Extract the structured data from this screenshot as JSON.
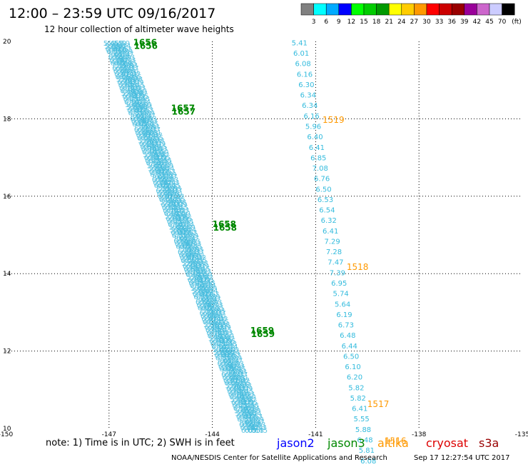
{
  "header": {
    "title": "12:00 – 23:59 UTC 09/16/2017",
    "subtitle": "12 hour collection of altimeter wave heights"
  },
  "colorbar": {
    "colors": [
      "#808080",
      "#00ffff",
      "#00aaff",
      "#0000ff",
      "#00ff00",
      "#00cc00",
      "#009900",
      "#ffff00",
      "#ffcc00",
      "#ff9900",
      "#ff0000",
      "#cc0000",
      "#990000",
      "#990099",
      "#cc66cc",
      "#ccccff",
      "#000000"
    ],
    "labels": [
      "3",
      "6",
      "9",
      "12",
      "15",
      "18",
      "21",
      "24",
      "27",
      "30",
      "33",
      "36",
      "39",
      "42",
      "45",
      "70"
    ],
    "unit": "(ft)"
  },
  "footer": {
    "note": "note: 1) Time is in UTC; 2) SWH is in feet",
    "credit": "NOAA/NESDIS Center for Satellite Applications and Research",
    "timestamp": "Sep 17 12:27:54 UTC 2017"
  },
  "legend": [
    {
      "label": "jason2",
      "color": "#0000ff"
    },
    {
      "label": "jason3",
      "color": "#008800"
    },
    {
      "label": "altika",
      "color": "#ff9900"
    },
    {
      "label": "cryosat",
      "color": "#dd0000"
    },
    {
      "label": "s3a",
      "color": "#990000"
    }
  ],
  "chart_data": {
    "type": "scatter",
    "title": "12:00 – 23:59 UTC 09/16/2017",
    "subtitle": "12 hour collection of altimeter wave heights",
    "xlabel": "",
    "ylabel": "",
    "xlim": [
      -150,
      -135
    ],
    "ylim": [
      10,
      20
    ],
    "x_ticks": [
      "-150",
      "-147",
      "-144",
      "-141",
      "-138",
      "-135"
    ],
    "y_ticks": [
      "10",
      "12",
      "14",
      "16",
      "18",
      "20"
    ],
    "grid": true,
    "value_unit": "ft",
    "series": [
      {
        "name": "altika",
        "color": "#33bbdd",
        "points": [
          {
            "x": -141.7,
            "y": 19.9,
            "v": "5.41"
          },
          {
            "x": -141.65,
            "y": 19.63,
            "v": "6.01"
          },
          {
            "x": -141.6,
            "y": 19.36,
            "v": "6.08"
          },
          {
            "x": -141.55,
            "y": 19.09,
            "v": "6.16"
          },
          {
            "x": -141.5,
            "y": 18.82,
            "v": "6.30"
          },
          {
            "x": -141.45,
            "y": 18.55,
            "v": "6.34"
          },
          {
            "x": -141.4,
            "y": 18.28,
            "v": "6.34"
          },
          {
            "x": -141.35,
            "y": 18.01,
            "v": "6.16"
          },
          {
            "x": -141.3,
            "y": 17.74,
            "v": "5.96"
          },
          {
            "x": -141.25,
            "y": 17.47,
            "v": "6.40"
          },
          {
            "x": -141.2,
            "y": 17.2,
            "v": "6.41"
          },
          {
            "x": -141.15,
            "y": 16.93,
            "v": "6.85"
          },
          {
            "x": -141.1,
            "y": 16.66,
            "v": "7.08"
          },
          {
            "x": -141.05,
            "y": 16.39,
            "v": "6.76"
          },
          {
            "x": -141.0,
            "y": 16.12,
            "v": "6.50"
          },
          {
            "x": -140.95,
            "y": 15.85,
            "v": "6.53"
          },
          {
            "x": -140.9,
            "y": 15.58,
            "v": "6.54"
          },
          {
            "x": -140.85,
            "y": 15.31,
            "v": "6.32"
          },
          {
            "x": -140.8,
            "y": 15.04,
            "v": "6.41"
          },
          {
            "x": -140.75,
            "y": 14.77,
            "v": "7.29"
          },
          {
            "x": -140.7,
            "y": 14.5,
            "v": "7.28"
          },
          {
            "x": -140.65,
            "y": 14.23,
            "v": "7.47"
          },
          {
            "x": -140.6,
            "y": 13.96,
            "v": "7.39"
          },
          {
            "x": -140.55,
            "y": 13.69,
            "v": "6.95"
          },
          {
            "x": -140.5,
            "y": 13.42,
            "v": "5.74"
          },
          {
            "x": -140.45,
            "y": 13.15,
            "v": "5.64"
          },
          {
            "x": -140.4,
            "y": 12.88,
            "v": "6.19"
          },
          {
            "x": -140.35,
            "y": 12.61,
            "v": "6.73"
          },
          {
            "x": -140.3,
            "y": 12.34,
            "v": "6.48"
          },
          {
            "x": -140.25,
            "y": 12.07,
            "v": "6.44"
          },
          {
            "x": -140.2,
            "y": 11.8,
            "v": "6.50"
          },
          {
            "x": -140.15,
            "y": 11.53,
            "v": "6.10"
          },
          {
            "x": -140.1,
            "y": 11.26,
            "v": "6.20"
          },
          {
            "x": -140.05,
            "y": 10.99,
            "v": "5.82"
          },
          {
            "x": -140.0,
            "y": 10.72,
            "v": "5.82"
          },
          {
            "x": -139.95,
            "y": 10.45,
            "v": "6.41"
          },
          {
            "x": -139.9,
            "y": 10.18,
            "v": "5.55"
          },
          {
            "x": -139.85,
            "y": 9.91,
            "v": "5.88"
          },
          {
            "x": -139.8,
            "y": 9.64,
            "v": "6.48"
          },
          {
            "x": -139.75,
            "y": 9.37,
            "v": "5.81"
          },
          {
            "x": -139.7,
            "y": 9.1,
            "v": "6.08"
          }
        ]
      }
    ],
    "altika_time_labels": [
      {
        "x": -140.8,
        "y": 17.9,
        "label": "1519"
      },
      {
        "x": -140.1,
        "y": 14.1,
        "label": "1518"
      },
      {
        "x": -139.5,
        "y": 10.55,
        "label": "1517"
      },
      {
        "x": -139.0,
        "y": 9.6,
        "label": "1516"
      }
    ],
    "jason3_time_labels": [
      {
        "x": -146.3,
        "y": 19.9,
        "label": "1656"
      },
      {
        "x": -145.2,
        "y": 18.2,
        "label": "1657"
      },
      {
        "x": -144.0,
        "y": 15.2,
        "label": "1658"
      },
      {
        "x": -142.9,
        "y": 12.45,
        "label": "1659"
      }
    ],
    "dense_track": {
      "name": "jason3 (overlapping, illegible)",
      "color": "#44bbdd",
      "from": {
        "x": -147.0,
        "y": 20.0
      },
      "to": {
        "x": -143.0,
        "y": 10.0
      },
      "sample_values": [
        "5.45",
        "5.83",
        "6.37",
        "6.81",
        "7.02",
        "6.55",
        "6.28",
        "6.09",
        "7.15",
        "6.73",
        "6.40",
        "6.92",
        "6.05",
        "5.98",
        "6.14",
        "6.59",
        "6.74",
        "6.13",
        "5.79",
        "6.37",
        "6.23",
        "6.13"
      ]
    }
  }
}
